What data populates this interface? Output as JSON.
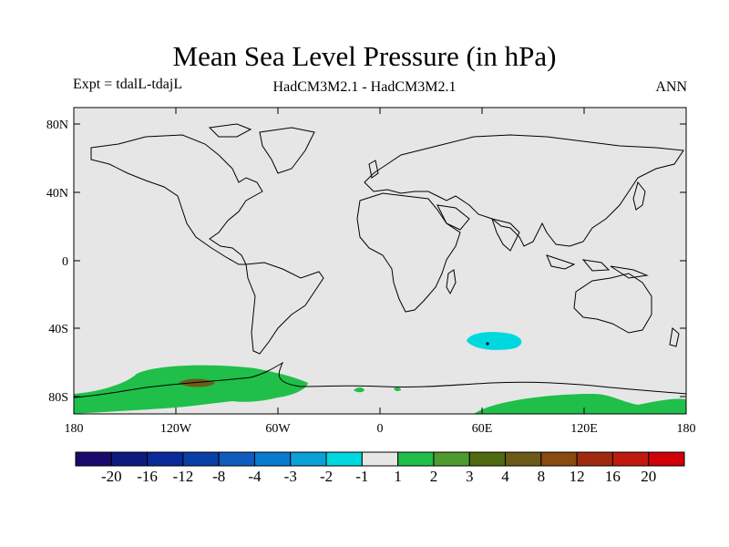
{
  "title": "Mean Sea Level Pressure (in hPa)",
  "subtitle_left": "Expt = tdalL-tdajL",
  "subtitle_center": "HadCM3M2.1 - HadCM3M2.1",
  "subtitle_right": "ANN",
  "colors": {
    "background": "#e6e6e6",
    "coast": "#000000",
    "positive_1_2": "#1fbf4a",
    "positive_4_8": "#6b5a18",
    "negative_2_1": "#00d8e0"
  },
  "axes": {
    "lat_ticks": [
      "80N",
      "40N",
      "0",
      "40S",
      "80S"
    ],
    "lon_ticks": [
      "180",
      "120W",
      "60W",
      "0",
      "60E",
      "120E",
      "180"
    ]
  },
  "colorbar": {
    "colors": [
      "#1a0a6e",
      "#0f1a80",
      "#0a2a99",
      "#0a3fa8",
      "#0f5cbf",
      "#0a7ad0",
      "#0aa0d8",
      "#00d8e0",
      "#e6e6e6",
      "#1fbf4a",
      "#4f9a2e",
      "#4f6a10",
      "#6b5a18",
      "#8a4a10",
      "#a02a10",
      "#c01a10",
      "#d00008"
    ],
    "labels": [
      "-20",
      "-16",
      "-12",
      "-8",
      "-4",
      "-3",
      "-2",
      "-1",
      "1",
      "2",
      "3",
      "4",
      "8",
      "12",
      "16",
      "20"
    ]
  }
}
